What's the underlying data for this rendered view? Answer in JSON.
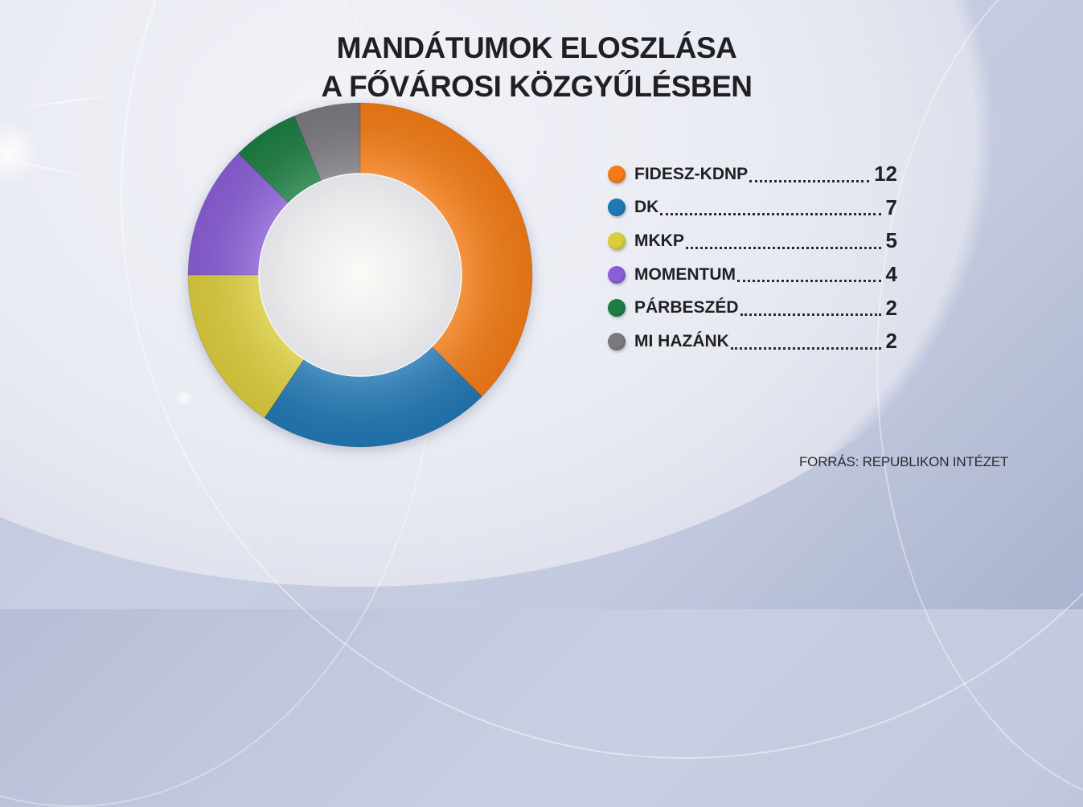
{
  "title": {
    "line1": "MANDÁTUMOK ELOSZLÁSA",
    "line2": "A FŐVÁROSI KÖZGYŰLÉSBEN"
  },
  "legend": [
    {
      "label": "FIDESZ-KDNP",
      "value": "12",
      "color": "#f47b16"
    },
    {
      "label": "DK",
      "value": "7",
      "color": "#2278b5"
    },
    {
      "label": "MKKP",
      "value": "5",
      "color": "#dccd3c"
    },
    {
      "label": "MOMENTUM",
      "value": "4",
      "color": "#8a5fd6"
    },
    {
      "label": "PÁRBESZÉD",
      "value": "2",
      "color": "#1b7e43"
    },
    {
      "label": "MI HAZÁNK",
      "value": "2",
      "color": "#7b7a80"
    }
  ],
  "source": "FORRÁS: REPUBLIKON INTÉZET",
  "chart_data": {
    "type": "pie",
    "subtype": "donut",
    "title": "MANDÁTUMOK ELOSZLÁSA A FŐVÁROSI KÖZGYŰLÉSBEN",
    "categories": [
      "FIDESZ-KDNP",
      "DK",
      "MKKP",
      "MOMENTUM",
      "PÁRBESZÉD",
      "MI HAZÁNK"
    ],
    "values": [
      12,
      7,
      5,
      4,
      2,
      2
    ],
    "colors": [
      "#f47b16",
      "#2278b5",
      "#dccd3c",
      "#8a5fd6",
      "#1b7e43",
      "#7b7a80"
    ],
    "total": 32,
    "start_angle": "12 o'clock",
    "direction": "clockwise",
    "legend_position": "right",
    "source": "FORRÁS: REPUBLIKON INTÉZET"
  }
}
